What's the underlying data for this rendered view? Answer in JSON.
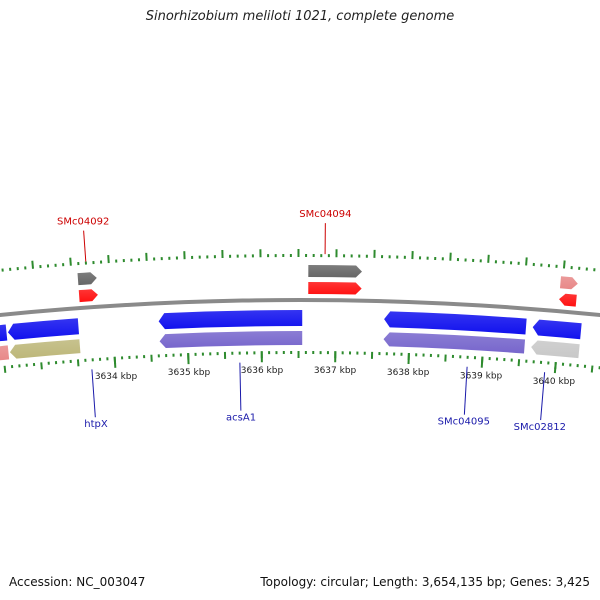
{
  "title": "Sinorhizobium meliloti 1021, complete genome",
  "footer": {
    "accession": "Accession: NC_003047",
    "summary": "Topology: circular; Length: 3,654,135 bp; Genes: 3,425"
  },
  "colors": {
    "backbone": "#8a8a8a",
    "tick": "#2e8b2e",
    "forward_label": "#cc0000",
    "reverse_label": "#1a1aaa",
    "cds_blue": "#1111ee",
    "cds_purple": "#7766cc",
    "cds_red": "#ff1111",
    "cds_gray": "#666666",
    "cds_pink": "#e88888",
    "cds_olive": "#bdb77a",
    "cds_lightgray": "#c8c8c8"
  },
  "axis": {
    "unit": "kbp",
    "ticks_kbp": [
      3634,
      3635,
      3636,
      3637,
      3638,
      3639,
      3640
    ]
  },
  "forward_labels": [
    {
      "name": "SMc04092",
      "pos_kbp": 3633.7
    },
    {
      "name": "SMc04094",
      "pos_kbp": 3636.85
    }
  ],
  "reverse_labels": [
    {
      "name": "htpX",
      "pos_kbp": 3633.68
    },
    {
      "name": "acsA1",
      "pos_kbp": 3635.7
    },
    {
      "name": "SMc04095",
      "pos_kbp": 3638.8
    },
    {
      "name": "SMc02812",
      "pos_kbp": 3639.86
    }
  ],
  "features": [
    {
      "track": "fwd_outer",
      "start_kbp": 3633.58,
      "end_kbp": 3633.83,
      "strand": "+",
      "color": "cds_gray"
    },
    {
      "track": "fwd_inner",
      "start_kbp": 3633.58,
      "end_kbp": 3633.83,
      "strand": "+",
      "color": "cds_red"
    },
    {
      "track": "fwd_outer",
      "start_kbp": 3636.63,
      "end_kbp": 3637.34,
      "strand": "+",
      "color": "cds_gray"
    },
    {
      "track": "fwd_inner",
      "start_kbp": 3636.63,
      "end_kbp": 3637.34,
      "strand": "+",
      "color": "cds_red"
    },
    {
      "track": "fwd_outer",
      "start_kbp": 3639.97,
      "end_kbp": 3640.2,
      "strand": "+",
      "color": "cds_pink"
    },
    {
      "track": "fwd_inner",
      "start_kbp": 3639.97,
      "end_kbp": 3640.2,
      "strand": "-",
      "color": "cds_red"
    },
    {
      "track": "rev_inner",
      "start_kbp": 3632.35,
      "end_kbp": 3632.57,
      "strand": "-",
      "color": "cds_blue"
    },
    {
      "track": "rev_inner",
      "start_kbp": 3632.59,
      "end_kbp": 3633.54,
      "strand": "-",
      "color": "cds_blue"
    },
    {
      "track": "rev_outer",
      "start_kbp": 3632.35,
      "end_kbp": 3632.57,
      "strand": "-",
      "color": "cds_pink"
    },
    {
      "track": "rev_outer",
      "start_kbp": 3632.59,
      "end_kbp": 3633.54,
      "strand": "-",
      "color": "cds_olive"
    },
    {
      "track": "rev_inner",
      "start_kbp": 3634.62,
      "end_kbp": 3636.55,
      "strand": "-",
      "color": "cds_blue"
    },
    {
      "track": "rev_outer",
      "start_kbp": 3634.62,
      "end_kbp": 3636.55,
      "strand": "-",
      "color": "cds_purple"
    },
    {
      "track": "rev_inner",
      "start_kbp": 3637.65,
      "end_kbp": 3639.56,
      "strand": "-",
      "color": "cds_blue"
    },
    {
      "track": "rev_outer",
      "start_kbp": 3637.65,
      "end_kbp": 3639.56,
      "strand": "-",
      "color": "cds_purple"
    },
    {
      "track": "rev_inner",
      "start_kbp": 3639.65,
      "end_kbp": 3640.3,
      "strand": "-",
      "color": "cds_blue"
    },
    {
      "track": "rev_outer",
      "start_kbp": 3639.65,
      "end_kbp": 3640.3,
      "strand": "-",
      "color": "cds_lightgray"
    }
  ]
}
